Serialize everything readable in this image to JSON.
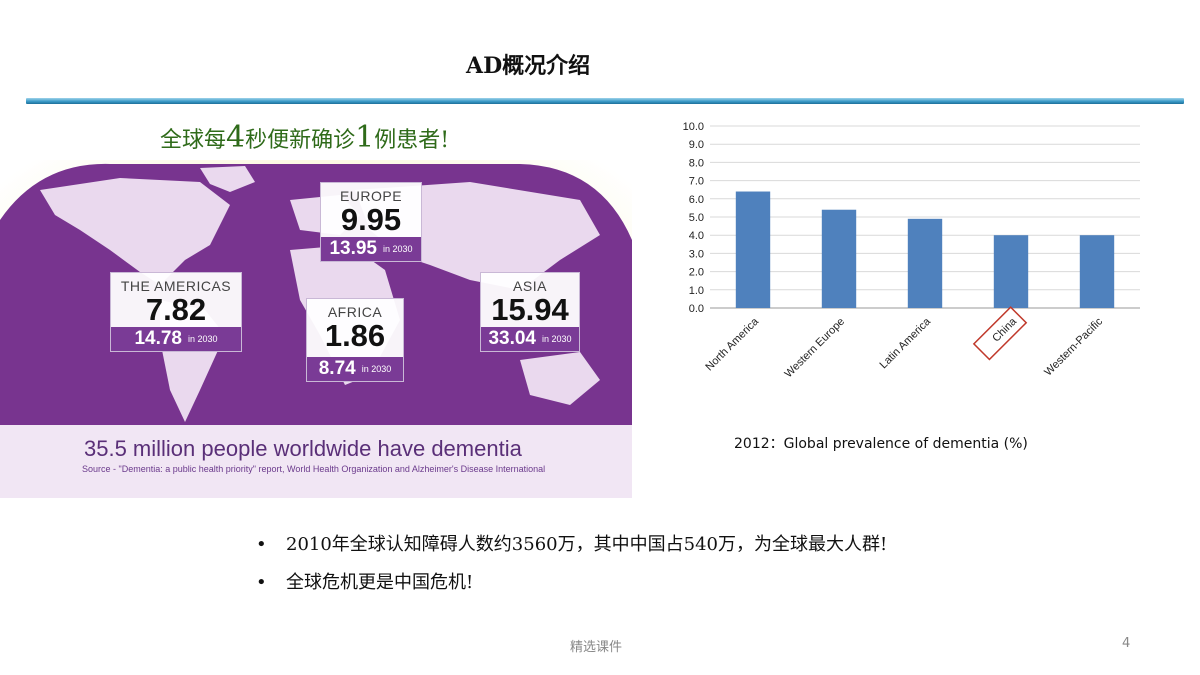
{
  "slide": {
    "title": "AD概况介绍",
    "headline_pre": "全球每",
    "headline_num1": "4",
    "headline_mid": "秒便新确诊",
    "headline_num2": "1",
    "headline_post": "例患者!"
  },
  "map": {
    "title": "35.5 million people worldwide have dementia",
    "source": "Source - \"Dementia: a public health priority\" report, World Health Organization and Alzheimer's Disease International",
    "regions": [
      {
        "region": "EUROPE",
        "value": "9.95",
        "future": "13.95",
        "future_note": "in 2030"
      },
      {
        "region": "THE AMERICAS",
        "value": "7.82",
        "future": "14.78",
        "future_note": "in 2030"
      },
      {
        "region": "AFRICA",
        "value": "1.86",
        "future": "8.74",
        "future_note": "in 2030"
      },
      {
        "region": "ASIA",
        "value": "15.94",
        "future": "33.04",
        "future_note": "in 2030"
      }
    ]
  },
  "chart_data": {
    "type": "bar",
    "categories": [
      "North America",
      "Western Europe",
      "Latin America",
      "China",
      "Western-Pacific"
    ],
    "values": [
      6.4,
      5.4,
      4.9,
      4.0,
      4.0
    ],
    "ylim": [
      0,
      10
    ],
    "yticks": [
      "0.0",
      "1.0",
      "2.0",
      "3.0",
      "4.0",
      "5.0",
      "6.0",
      "7.0",
      "8.0",
      "9.0",
      "10.0"
    ],
    "highlighted_category": "China",
    "bar_color": "#4f81bd",
    "highlight_color": "#c0392b",
    "grid": true
  },
  "chart_caption": "2012：Global prevalence of dementia (%)",
  "bullets": [
    "2010年全球认知障碍人数约3560万，其中中国占540万，为全球最大人群!",
    "全球危机更是中国危机!"
  ],
  "bullet_symbol": "•",
  "footer": {
    "text": "精选课件",
    "page": "4"
  },
  "colors": {
    "title_rule": "#3c9cc9",
    "headline": "#2f6b1a",
    "map_purple": "#7a3b96"
  }
}
